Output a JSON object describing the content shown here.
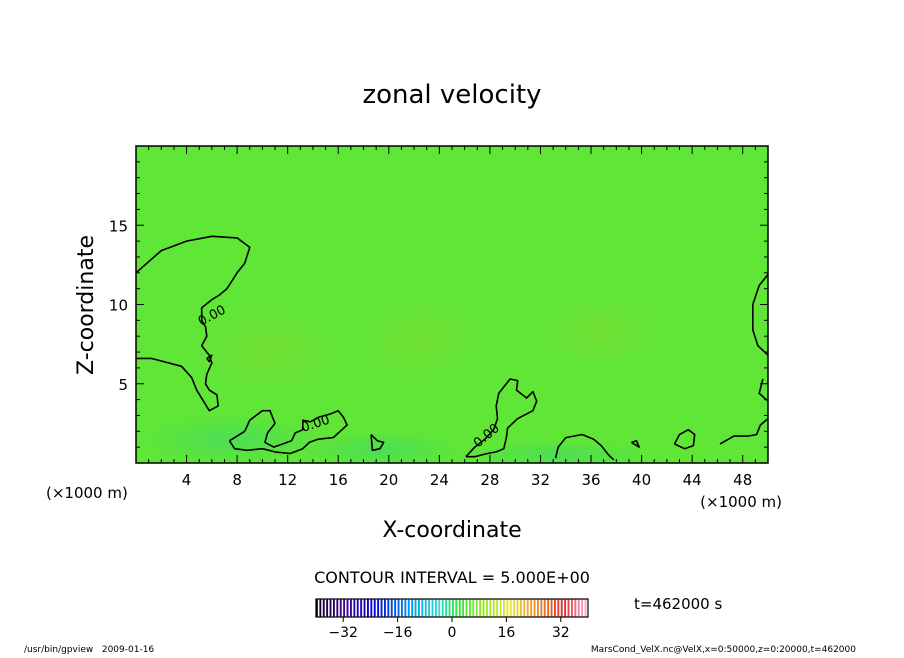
{
  "chart_data": {
    "type": "contour",
    "title": "zonal velocity",
    "xlabel": "X-coordinate",
    "ylabel": "Z-coordinate",
    "x_unit_left": "(×1000 m)",
    "x_unit_right": "(×1000 m)",
    "xlim": [
      0,
      50
    ],
    "ylim": [
      0,
      20
    ],
    "x_ticks": [
      4,
      8,
      12,
      16,
      20,
      24,
      28,
      32,
      36,
      40,
      44,
      48
    ],
    "y_ticks": [
      5,
      10,
      15
    ],
    "contour_labels": [
      "0.00",
      "0.00",
      "0.00"
    ],
    "contour_interval_text": "CONTOUR INTERVAL = 5.000E+00",
    "time_text": "t=462000 s",
    "colorbar": {
      "min": -40,
      "max": 40,
      "ticks": [
        -32,
        -16,
        0,
        16,
        32
      ],
      "tick_labels": [
        "−32",
        "−16",
        "0",
        "16",
        "32"
      ]
    },
    "footer_left": "/usr/bin/gpview   2009-01-16",
    "footer_right": "MarsCond_VelX.nc@VelX,x=0:50000,z=0:20000,t=462000",
    "zero_contours": [
      [
        [
          0,
          12
        ],
        [
          2,
          13.4
        ],
        [
          4,
          14
        ],
        [
          6,
          14.3
        ],
        [
          8,
          14.2
        ],
        [
          9,
          13.6
        ],
        [
          8.6,
          12.6
        ],
        [
          8,
          12
        ],
        [
          7.6,
          11.5
        ],
        [
          7.2,
          11
        ],
        [
          6.6,
          10.6
        ],
        [
          6,
          10.3
        ],
        [
          5.2,
          9.8
        ],
        [
          5.2,
          9
        ],
        [
          5.5,
          8.6
        ],
        [
          5.6,
          8
        ],
        [
          5.2,
          7.4
        ],
        [
          5.8,
          6.8
        ],
        [
          6,
          6.3
        ],
        [
          5.6,
          5.6
        ],
        [
          5.5,
          5
        ],
        [
          5.8,
          4.6
        ],
        [
          6.4,
          4.3
        ],
        [
          6.5,
          3.6
        ],
        [
          5.8,
          3.3
        ],
        [
          4.8,
          4.6
        ],
        [
          4.4,
          5.4
        ],
        [
          3.6,
          6.1
        ],
        [
          2.2,
          6.4
        ],
        [
          1.2,
          6.6
        ],
        [
          0,
          6.6
        ]
      ],
      [
        [
          7.4,
          1.4
        ],
        [
          8.6,
          2
        ],
        [
          9,
          2.7
        ],
        [
          10,
          3.3
        ],
        [
          10.6,
          3.3
        ],
        [
          11,
          2.5
        ],
        [
          10.4,
          1.9
        ],
        [
          10.2,
          1.3
        ],
        [
          10.9,
          1
        ],
        [
          11.6,
          1.2
        ],
        [
          12.3,
          1.4
        ],
        [
          12.6,
          1.9
        ],
        [
          13.2,
          2.1
        ],
        [
          13.2,
          2.7
        ],
        [
          13.8,
          2.6
        ],
        [
          14.5,
          2.9
        ],
        [
          15.4,
          3.1
        ],
        [
          16,
          3.3
        ],
        [
          16.4,
          2.9
        ],
        [
          16.7,
          2.4
        ],
        [
          16.3,
          2.1
        ],
        [
          15.6,
          1.6
        ],
        [
          14.4,
          1.5
        ],
        [
          13.7,
          1.3
        ],
        [
          13.2,
          0.9
        ],
        [
          12.2,
          0.6
        ],
        [
          11,
          0.7
        ],
        [
          10,
          0.9
        ],
        [
          8.8,
          0.8
        ],
        [
          7.8,
          0.9
        ],
        [
          7.4,
          1.4
        ]
      ],
      [
        [
          26.1,
          0.4
        ],
        [
          26.8,
          1
        ],
        [
          27.6,
          1.5
        ],
        [
          28.3,
          2.1
        ],
        [
          28.6,
          2.8
        ],
        [
          28.5,
          3.6
        ],
        [
          28.7,
          4.4
        ],
        [
          29.6,
          5.3
        ],
        [
          30.2,
          5.2
        ],
        [
          30.1,
          4.6
        ],
        [
          30.9,
          4.1
        ],
        [
          31.4,
          4.5
        ],
        [
          31.7,
          3.9
        ],
        [
          31.4,
          3.3
        ],
        [
          30.2,
          2.8
        ],
        [
          29.4,
          2.2
        ],
        [
          29.3,
          1.6
        ],
        [
          29.1,
          0.9
        ],
        [
          28.5,
          0.7
        ],
        [
          27.8,
          0.6
        ],
        [
          26.8,
          0.4
        ],
        [
          26.1,
          0.4
        ]
      ],
      [
        [
          33.2,
          0.3
        ],
        [
          33.4,
          1
        ],
        [
          34,
          1.6
        ],
        [
          35.3,
          1.8
        ],
        [
          36.2,
          1.5
        ],
        [
          36.8,
          1.1
        ],
        [
          37.4,
          0.5
        ],
        [
          37.8,
          0.2
        ]
      ],
      [
        [
          42.6,
          1.2
        ],
        [
          43,
          1.8
        ],
        [
          43.7,
          2.1
        ],
        [
          44.2,
          1.8
        ],
        [
          44.1,
          1.1
        ],
        [
          43.4,
          0.9
        ],
        [
          42.6,
          1.2
        ]
      ],
      [
        [
          46.2,
          1.2
        ],
        [
          47.3,
          1.7
        ],
        [
          48.4,
          1.7
        ],
        [
          49.1,
          1.8
        ],
        [
          49.4,
          2.4
        ],
        [
          50,
          2.8
        ]
      ],
      [
        [
          50,
          3.9
        ],
        [
          49.3,
          4.4
        ],
        [
          49.6,
          5.3
        ]
      ],
      [
        [
          50,
          11.9
        ],
        [
          49.3,
          11.2
        ],
        [
          48.8,
          10
        ],
        [
          48.8,
          8.4
        ],
        [
          49.2,
          7.4
        ],
        [
          50,
          6.8
        ]
      ],
      [
        [
          18.6,
          1.8
        ],
        [
          19.1,
          1.4
        ],
        [
          19.6,
          1.3
        ],
        [
          19.3,
          0.9
        ],
        [
          18.7,
          0.8
        ],
        [
          18.6,
          1.8
        ]
      ],
      [
        [
          39.2,
          1.3
        ],
        [
          39.6,
          1.4
        ],
        [
          39.8,
          1
        ],
        [
          39.2,
          1.3
        ]
      ],
      [
        [
          5.6,
          6.6
        ],
        [
          6,
          6.8
        ],
        [
          5.8,
          6.4
        ],
        [
          5.6,
          6.6
        ]
      ]
    ]
  }
}
